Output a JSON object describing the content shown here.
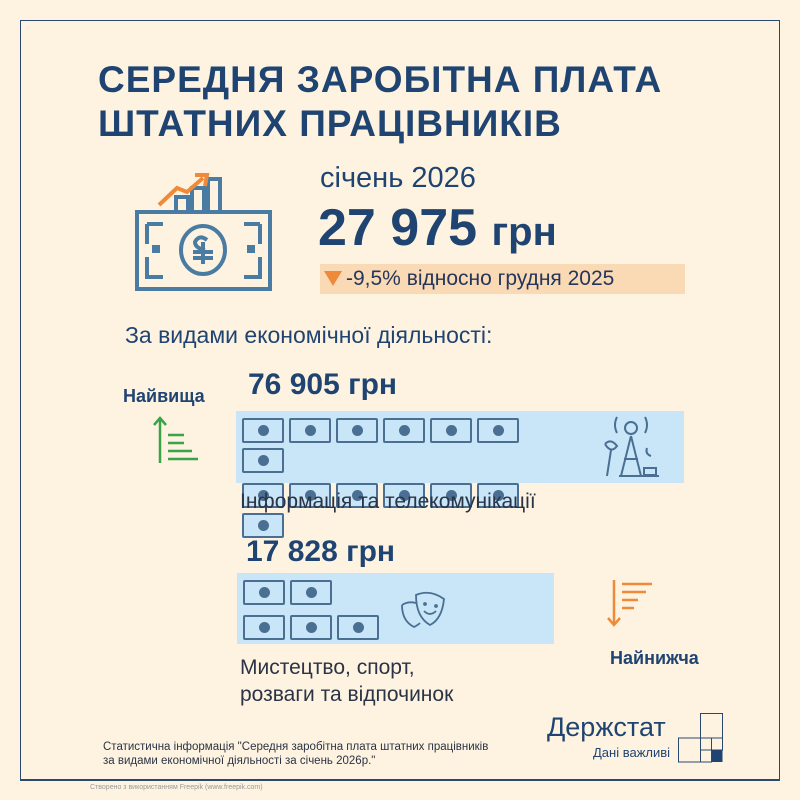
{
  "header": {
    "title_line1": "СЕРЕДНЯ ЗАРОБІТНА ПЛАТА",
    "title_line2": "ШТАТНИХ ПРАЦІВНИКІВ"
  },
  "summary": {
    "period": "січень 2026",
    "average_value": "27 975",
    "unit": "грн",
    "change": "-9,5% відносно грудня 2025",
    "change_direction": "down"
  },
  "breakdown": {
    "subtitle": "За видами економічної діяльності:",
    "highest": {
      "label": "Найвища",
      "value": "76 905 грн",
      "category": "Інформація та телекомунікації",
      "bill_count": 14
    },
    "lowest": {
      "label": "Найнижча",
      "value": "17 828 грн",
      "category_line1": "Мистецтво, спорт,",
      "category_line2": "розваги та відпочинок",
      "bill_count": 5
    }
  },
  "footer": {
    "source_line1": "Статистична інформація \"Середня заробітна плата штатних працівників",
    "source_line2": "за видами економічної діяльності за січень 2026р.\"",
    "credit": "Створено з використанням Freepik (www.freepik.com)",
    "logo": "Держстат",
    "slogan": "Дані важливі"
  },
  "colors": {
    "background": "#fdf3e0",
    "primary": "#1f4472",
    "band": "#c8e6f7",
    "highest_arrow": "#3aa34a",
    "lowest_arrow": "#ef8a3a",
    "change_bg": "#fad9b5"
  }
}
